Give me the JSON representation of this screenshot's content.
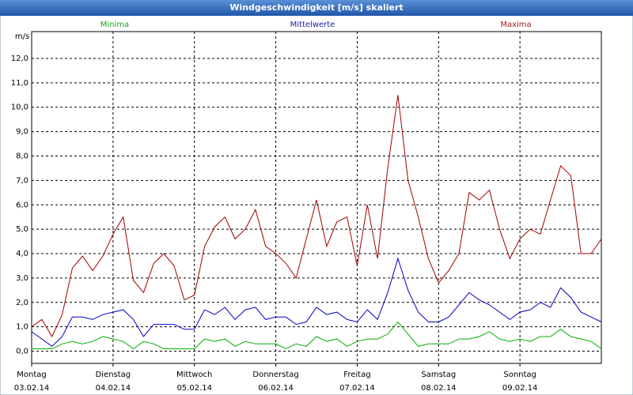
{
  "chart_data": {
    "type": "line",
    "title": "Windgeschwindigkeit [m/s] skaliert",
    "y_label": "m/s",
    "categories": [
      {
        "day": "Montag",
        "date": "03.02.14"
      },
      null,
      null,
      null,
      null,
      null,
      null,
      null,
      {
        "day": "Dienstag",
        "date": "04.02.14"
      },
      null,
      null,
      null,
      null,
      null,
      null,
      null,
      {
        "day": "Mittwoch",
        "date": "05.02.14"
      },
      null,
      null,
      null,
      null,
      null,
      null,
      null,
      {
        "day": "Donnerstag",
        "date": "06.02.14"
      },
      null,
      null,
      null,
      null,
      null,
      null,
      null,
      {
        "day": "Freitag",
        "date": "07.02.14"
      },
      null,
      null,
      null,
      null,
      null,
      null,
      null,
      {
        "day": "Samstag",
        "date": "08.02.14"
      },
      null,
      null,
      null,
      null,
      null,
      null,
      null,
      {
        "day": "Sonntag",
        "date": "09.02.14"
      },
      null,
      null,
      null,
      null,
      null,
      null,
      null,
      null
    ],
    "series": [
      {
        "name": "Minima",
        "color": "#00b000",
        "label_color": "#20a020",
        "values": [
          0.1,
          0.1,
          0.1,
          0.3,
          0.4,
          0.3,
          0.4,
          0.6,
          0.5,
          0.4,
          0.1,
          0.4,
          0.3,
          0.1,
          0.1,
          0.1,
          0.1,
          0.5,
          0.4,
          0.5,
          0.2,
          0.4,
          0.3,
          0.3,
          0.3,
          0.1,
          0.3,
          0.2,
          0.6,
          0.4,
          0.5,
          0.2,
          0.4,
          0.5,
          0.5,
          0.7,
          1.2,
          0.7,
          0.2,
          0.3,
          0.3,
          0.3,
          0.5,
          0.5,
          0.6,
          0.8,
          0.5,
          0.4,
          0.5,
          0.4,
          0.6,
          0.6,
          0.9,
          0.6,
          0.5,
          0.4,
          0.1
        ]
      },
      {
        "name": "Mittelwerte",
        "color": "#0000c0",
        "label_color": "#2020a0",
        "values": [
          0.8,
          0.5,
          0.2,
          0.6,
          1.4,
          1.4,
          1.3,
          1.5,
          1.6,
          1.7,
          1.3,
          0.6,
          1.1,
          1.1,
          1.1,
          0.9,
          0.9,
          1.7,
          1.5,
          1.8,
          1.3,
          1.7,
          1.8,
          1.3,
          1.4,
          1.4,
          1.1,
          1.2,
          1.8,
          1.5,
          1.6,
          1.3,
          1.2,
          1.7,
          1.3,
          2.4,
          3.8,
          2.5,
          1.6,
          1.2,
          1.2,
          1.4,
          1.9,
          2.4,
          2.1,
          1.9,
          1.6,
          1.3,
          1.6,
          1.7,
          2.0,
          1.8,
          2.6,
          2.2,
          1.6,
          1.4,
          1.2
        ]
      },
      {
        "name": "Maxima",
        "color": "#a00000",
        "label_color": "#a02020",
        "values": [
          1.0,
          1.3,
          0.6,
          1.5,
          3.4,
          3.9,
          3.3,
          3.9,
          4.8,
          5.5,
          2.9,
          2.4,
          3.6,
          4.0,
          3.5,
          2.1,
          2.3,
          4.3,
          5.1,
          5.5,
          4.6,
          5.0,
          5.8,
          4.3,
          4.0,
          3.6,
          3.0,
          4.6,
          6.2,
          4.3,
          5.3,
          5.5,
          3.5,
          6.0,
          3.8,
          7.5,
          10.5,
          7.0,
          5.5,
          3.8,
          2.8,
          3.3,
          4.0,
          6.5,
          6.2,
          6.6,
          5.0,
          3.8,
          4.6,
          5.0,
          4.8,
          6.2,
          7.6,
          7.2,
          4.0,
          4.0,
          4.6
        ]
      }
    ],
    "ylim": [
      -0.5,
      13.1
    ],
    "yticks": [
      {
        "value": 0,
        "label": "0,0"
      },
      {
        "value": 1,
        "label": "1,0"
      },
      {
        "value": 2,
        "label": "2,0"
      },
      {
        "value": 3,
        "label": "3,0"
      },
      {
        "value": 4,
        "label": "4,0"
      },
      {
        "value": 5,
        "label": "5,0"
      },
      {
        "value": 6,
        "label": "6,0"
      },
      {
        "value": 7,
        "label": "7,0"
      },
      {
        "value": 8,
        "label": "8,0"
      },
      {
        "value": 9,
        "label": "9,0"
      },
      {
        "value": 10,
        "label": "10,0"
      },
      {
        "value": 11,
        "label": "11,0"
      },
      {
        "value": 12,
        "label": "12,0"
      }
    ],
    "grid": true
  }
}
